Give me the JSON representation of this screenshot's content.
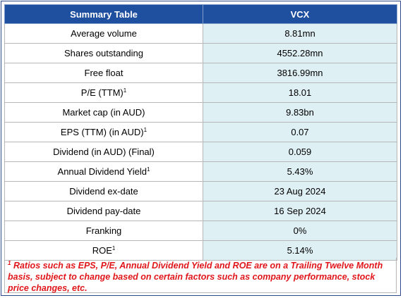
{
  "table": {
    "header": {
      "label": "Summary Table",
      "ticker": "VCX"
    },
    "rows": [
      {
        "label": "Average volume",
        "sup": "",
        "value": "8.81mn"
      },
      {
        "label": "Shares outstanding",
        "sup": "",
        "value": "4552.28mn"
      },
      {
        "label": "Free float",
        "sup": "",
        "value": "3816.99mn"
      },
      {
        "label": "P/E (TTM)",
        "sup": "1",
        "value": "18.01"
      },
      {
        "label": "Market cap (in AUD)",
        "sup": "",
        "value": "9.83bn"
      },
      {
        "label": "EPS (TTM) (in AUD)",
        "sup": "1",
        "value": "0.07"
      },
      {
        "label": "Dividend (in AUD) (Final)",
        "sup": "",
        "value": "0.059"
      },
      {
        "label": "Annual Dividend Yield",
        "sup": "1",
        "value": "5.43%"
      },
      {
        "label": "Dividend ex-date",
        "sup": "",
        "value": "23 Aug 2024"
      },
      {
        "label": "Dividend pay-date",
        "sup": "",
        "value": "16 Sep 2024"
      },
      {
        "label": "Franking",
        "sup": "",
        "value": "0%"
      },
      {
        "label": "ROE",
        "sup": "1",
        "value": "5.14%"
      }
    ]
  },
  "footnote": {
    "marker": "1",
    "text": "Ratios such as EPS, P/E, Annual Dividend Yield and ROE are on a Trailing Twelve Month basis, subject to change based on certain factors such as company performance, stock price changes, etc."
  },
  "colors": {
    "header_bg": "#1f4f9f",
    "value_bg": "#dff0f5",
    "footnote_text": "#e0161b"
  }
}
